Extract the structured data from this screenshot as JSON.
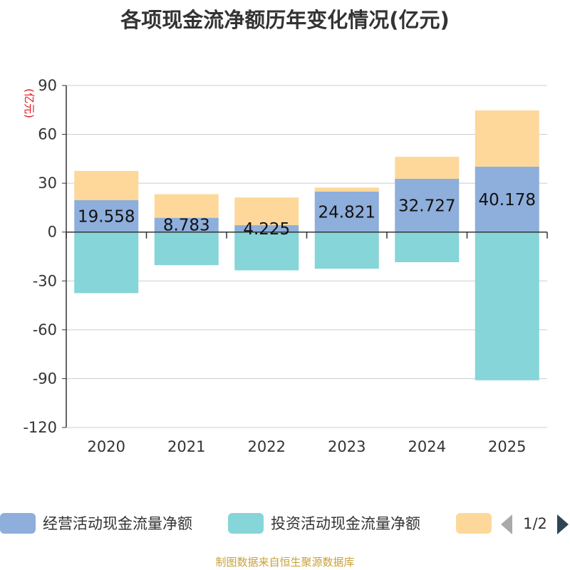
{
  "chart_data": {
    "type": "bar",
    "stacked": true,
    "title": "各项现金流净额历年变化情况(亿元)",
    "ylabel": "(亿元)",
    "categories": [
      "2020",
      "2021",
      "2022",
      "2023",
      "2024",
      "2025"
    ],
    "ylim": [
      -120,
      90
    ],
    "yticks": [
      90,
      60,
      30,
      0,
      -30,
      -60,
      -90,
      -120
    ],
    "grid": true,
    "series": [
      {
        "name": "经营活动现金流量净额",
        "color": "#8eaedb",
        "values": [
          19.558,
          8.783,
          4.225,
          24.821,
          32.727,
          40.178
        ],
        "labels": [
          "19.558",
          "8.783",
          "4.225",
          "24.821",
          "32.727",
          "40.178"
        ]
      },
      {
        "name": "投资活动现金流量净额",
        "color": "#86d5d8",
        "values": [
          -37.5,
          -20.3,
          -23.5,
          -22.5,
          -18.5,
          -91.0
        ]
      },
      {
        "name": "",
        "color": "#fdd89a",
        "values": [
          18.0,
          14.5,
          17.0,
          2.5,
          13.5,
          34.5
        ]
      }
    ],
    "legend_position": "bottom"
  },
  "legend": {
    "page": "1/2"
  },
  "source": "制图数据来自恒生聚源数据库"
}
